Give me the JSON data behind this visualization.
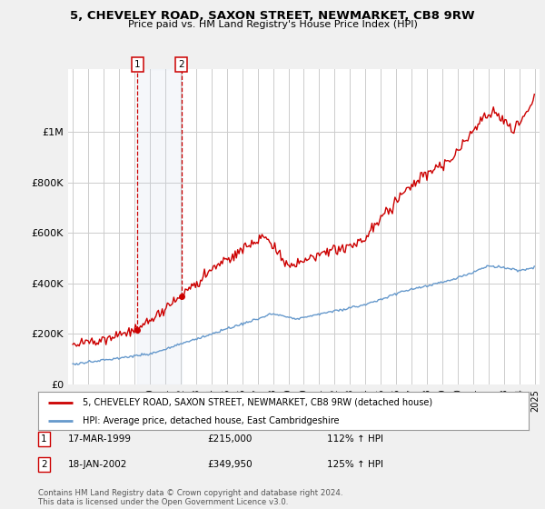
{
  "title": "5, CHEVELEY ROAD, SAXON STREET, NEWMARKET, CB8 9RW",
  "subtitle": "Price paid vs. HM Land Registry's House Price Index (HPI)",
  "legend_line1": "5, CHEVELEY ROAD, SAXON STREET, NEWMARKET, CB8 9RW (detached house)",
  "legend_line2": "HPI: Average price, detached house, East Cambridgeshire",
  "footer": "Contains HM Land Registry data © Crown copyright and database right 2024.\nThis data is licensed under the Open Government Licence v3.0.",
  "transaction1": {
    "label": "1",
    "date": "17-MAR-1999",
    "price": "£215,000",
    "hpi": "112% ↑ HPI",
    "year": 1999.2,
    "value": 215000
  },
  "transaction2": {
    "label": "2",
    "date": "18-JAN-2002",
    "price": "£349,950",
    "hpi": "125% ↑ HPI",
    "value": 349950,
    "year": 2002.05
  },
  "red_line_color": "#cc0000",
  "blue_line_color": "#6699cc",
  "background_color": "#f0f0f0",
  "plot_bg_color": "#ffffff",
  "grid_color": "#cccccc",
  "ylim": [
    0,
    1250000
  ],
  "xlim_start": 1994.7,
  "xlim_end": 2025.3,
  "yticks": [
    0,
    200000,
    400000,
    600000,
    800000,
    1000000
  ],
  "ylabels": [
    "£0",
    "£200K",
    "£400K",
    "£600K",
    "£800K",
    "£1M"
  ]
}
